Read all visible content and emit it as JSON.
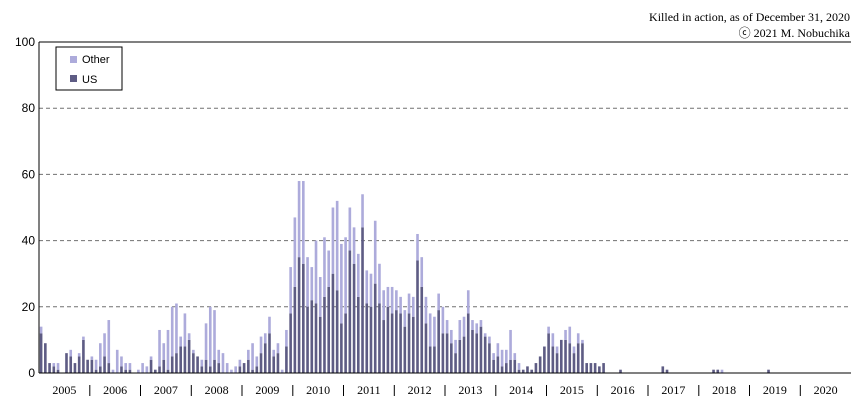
{
  "header": {
    "note_line1": "Killed in action, as of December 31, 2020",
    "note_line2": "ⓒ 2021 M. Nobuchika"
  },
  "legend": {
    "other_label": "Other",
    "us_label": "US"
  },
  "colors": {
    "other": "#ADABDB",
    "us": "#5E5C84",
    "gridline": "#707070",
    "frame": "#000000"
  },
  "chart_data": {
    "type": "bar",
    "stacked": true,
    "title": "",
    "xlabel": "",
    "ylabel": "",
    "ylim": [
      0,
      100
    ],
    "yticks": [
      "0",
      "20",
      "40",
      "60",
      "80",
      "100"
    ],
    "grid": true,
    "legend_position": "top-left",
    "x_interval": "month",
    "x_start": "2005-01",
    "x_end": "2020-12",
    "year_labels": [
      "2005",
      "2006",
      "2007",
      "2008",
      "2009",
      "2010",
      "2011",
      "2012",
      "2013",
      "2014",
      "2015",
      "2016",
      "2017",
      "2018",
      "2019",
      "2020"
    ],
    "series": [
      {
        "name": "Other",
        "values": [
          2,
          0,
          0,
          1,
          2,
          0,
          0,
          2,
          0,
          1,
          1,
          0,
          1,
          3,
          7,
          7,
          13,
          1,
          7,
          3,
          2,
          2,
          0,
          1,
          3,
          2,
          1,
          0,
          11,
          5,
          12,
          15,
          15,
          3,
          10,
          2,
          1,
          0,
          2,
          11,
          18,
          15,
          4,
          6,
          3,
          1,
          2,
          2,
          0,
          3,
          8,
          3,
          5,
          3,
          5,
          2,
          3,
          1,
          5,
          14,
          21,
          23,
          25,
          15,
          10,
          19,
          12,
          18,
          11,
          20,
          27,
          24,
          23,
          13,
          11,
          13,
          10,
          10,
          10,
          19,
          12,
          9,
          6,
          8,
          6,
          5,
          5,
          6,
          6,
          8,
          9,
          8,
          10,
          9,
          5,
          8,
          4,
          4,
          4,
          6,
          6,
          7,
          3,
          3,
          2,
          1,
          2,
          2,
          4,
          5,
          4,
          9,
          2,
          2,
          0,
          0,
          0,
          0,
          0,
          0,
          2,
          4,
          2,
          0,
          3,
          5,
          2,
          3,
          1,
          0,
          0,
          0,
          0,
          0,
          0,
          0,
          0,
          0,
          0,
          0,
          0,
          0,
          0,
          0,
          0,
          0,
          0,
          0,
          0,
          0,
          0,
          0,
          0,
          0,
          0,
          0,
          0,
          0,
          0,
          0,
          0,
          1,
          0,
          0,
          0,
          0,
          0,
          0,
          0,
          0,
          0,
          0,
          0,
          0,
          0,
          0,
          0,
          0,
          0,
          0,
          0,
          0,
          0,
          0,
          0,
          0,
          0,
          0,
          0,
          0,
          0,
          0
        ]
      },
      {
        "name": "US",
        "values": [
          12,
          9,
          3,
          2,
          1,
          0,
          6,
          5,
          3,
          5,
          10,
          4,
          4,
          1,
          2,
          5,
          3,
          0,
          0,
          2,
          1,
          1,
          0,
          0,
          0,
          0,
          4,
          1,
          2,
          4,
          1,
          5,
          6,
          8,
          8,
          10,
          6,
          5,
          2,
          4,
          2,
          4,
          3,
          0,
          0,
          0,
          0,
          2,
          3,
          4,
          1,
          2,
          6,
          9,
          12,
          5,
          6,
          0,
          8,
          18,
          26,
          35,
          33,
          20,
          22,
          21,
          17,
          23,
          26,
          30,
          25,
          15,
          18,
          37,
          33,
          23,
          44,
          21,
          20,
          27,
          21,
          16,
          20,
          18,
          19,
          18,
          14,
          18,
          17,
          34,
          26,
          15,
          8,
          8,
          19,
          12,
          12,
          9,
          6,
          10,
          11,
          18,
          13,
          12,
          14,
          11,
          9,
          4,
          5,
          2,
          3,
          4,
          4,
          1,
          1,
          2,
          1,
          3,
          5,
          8,
          12,
          8,
          6,
          10,
          10,
          9,
          6,
          9,
          9,
          3,
          3,
          3,
          2,
          3,
          0,
          0,
          0,
          1,
          0,
          0,
          0,
          0,
          0,
          0,
          0,
          0,
          0,
          2,
          1,
          0,
          0,
          0,
          0,
          0,
          0,
          0,
          0,
          0,
          0,
          1,
          1,
          0,
          0,
          0,
          0,
          0,
          0,
          0,
          0,
          0,
          0,
          0,
          1,
          0,
          0,
          0,
          0,
          0,
          0,
          0,
          0,
          0,
          0,
          0,
          0,
          0,
          0,
          0,
          0,
          0,
          0,
          0
        ]
      }
    ]
  }
}
